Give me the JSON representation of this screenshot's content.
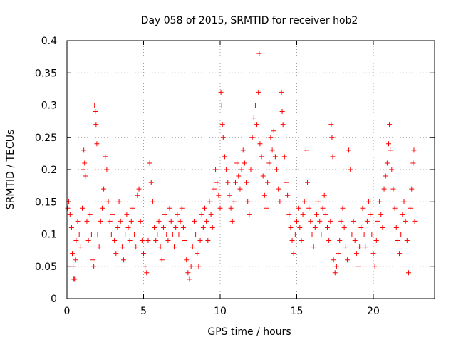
{
  "chart_data": {
    "type": "scatter",
    "title": "Day 058 of 2015, SRMTID for receiver hob2",
    "xlabel": "GPS time / hours",
    "ylabel": "SRMTID / TECUs",
    "xlim": [
      0,
      24
    ],
    "ylim": [
      0,
      0.4
    ],
    "xticks": [
      0,
      5,
      10,
      15,
      20
    ],
    "xtick_labels": [
      "0",
      "5",
      "10",
      "15",
      "20"
    ],
    "yticks": [
      0,
      0.05,
      0.1,
      0.15,
      0.2,
      0.25,
      0.3,
      0.35,
      0.4
    ],
    "ytick_labels": [
      "0",
      "0.05",
      "0.1",
      "0.15",
      "0.2",
      "0.25",
      "0.3",
      "0.35",
      "0.4"
    ],
    "grid": true,
    "marker": "+",
    "color": "#ff0000",
    "series": [
      {
        "name": "SRMTID",
        "points": [
          [
            0.05,
            0.14
          ],
          [
            0.12,
            0.15
          ],
          [
            0.2,
            0.13
          ],
          [
            0.3,
            0.11
          ],
          [
            0.35,
            0.07
          ],
          [
            0.4,
            0.05
          ],
          [
            0.45,
            0.03
          ],
          [
            0.5,
            0.03
          ],
          [
            0.55,
            0.06
          ],
          [
            0.6,
            0.09
          ],
          [
            0.7,
            0.12
          ],
          [
            0.8,
            0.1
          ],
          [
            0.9,
            0.08
          ],
          [
            1.0,
            0.14
          ],
          [
            1.05,
            0.2
          ],
          [
            1.1,
            0.23
          ],
          [
            1.15,
            0.21
          ],
          [
            1.2,
            0.19
          ],
          [
            1.3,
            0.12
          ],
          [
            1.4,
            0.09
          ],
          [
            1.5,
            0.13
          ],
          [
            1.6,
            0.1
          ],
          [
            1.7,
            0.06
          ],
          [
            1.75,
            0.05
          ],
          [
            1.8,
            0.3
          ],
          [
            1.85,
            0.29
          ],
          [
            1.9,
            0.27
          ],
          [
            1.95,
            0.24
          ],
          [
            2.0,
            0.1
          ],
          [
            2.1,
            0.08
          ],
          [
            2.2,
            0.12
          ],
          [
            2.3,
            0.14
          ],
          [
            2.4,
            0.17
          ],
          [
            2.5,
            0.22
          ],
          [
            2.6,
            0.2
          ],
          [
            2.7,
            0.15
          ],
          [
            2.8,
            0.12
          ],
          [
            2.9,
            0.1
          ],
          [
            3.0,
            0.13
          ],
          [
            3.1,
            0.09
          ],
          [
            3.2,
            0.07
          ],
          [
            3.3,
            0.11
          ],
          [
            3.4,
            0.15
          ],
          [
            3.5,
            0.12
          ],
          [
            3.6,
            0.08
          ],
          [
            3.7,
            0.06
          ],
          [
            3.8,
            0.1
          ],
          [
            3.9,
            0.13
          ],
          [
            4.0,
            0.11
          ],
          [
            4.1,
            0.09
          ],
          [
            4.2,
            0.12
          ],
          [
            4.3,
            0.14
          ],
          [
            4.4,
            0.1
          ],
          [
            4.5,
            0.08
          ],
          [
            4.6,
            0.16
          ],
          [
            4.7,
            0.17
          ],
          [
            4.8,
            0.12
          ],
          [
            4.9,
            0.09
          ],
          [
            5.0,
            0.07
          ],
          [
            5.1,
            0.05
          ],
          [
            5.2,
            0.04
          ],
          [
            5.3,
            0.09
          ],
          [
            5.4,
            0.21
          ],
          [
            5.5,
            0.18
          ],
          [
            5.6,
            0.15
          ],
          [
            5.7,
            0.11
          ],
          [
            5.8,
            0.09
          ],
          [
            5.9,
            0.1
          ],
          [
            6.0,
            0.12
          ],
          [
            6.1,
            0.08
          ],
          [
            6.2,
            0.06
          ],
          [
            6.3,
            0.11
          ],
          [
            6.4,
            0.13
          ],
          [
            6.5,
            0.1
          ],
          [
            6.6,
            0.09
          ],
          [
            6.7,
            0.14
          ],
          [
            6.8,
            0.12
          ],
          [
            6.9,
            0.1
          ],
          [
            7.0,
            0.08
          ],
          [
            7.1,
            0.11
          ],
          [
            7.2,
            0.13
          ],
          [
            7.3,
            0.1
          ],
          [
            7.4,
            0.12
          ],
          [
            7.5,
            0.14
          ],
          [
            7.6,
            0.11
          ],
          [
            7.7,
            0.09
          ],
          [
            7.8,
            0.06
          ],
          [
            7.9,
            0.04
          ],
          [
            8.0,
            0.03
          ],
          [
            8.1,
            0.05
          ],
          [
            8.2,
            0.08
          ],
          [
            8.3,
            0.12
          ],
          [
            8.4,
            0.1
          ],
          [
            8.5,
            0.07
          ],
          [
            8.6,
            0.05
          ],
          [
            8.7,
            0.09
          ],
          [
            8.8,
            0.13
          ],
          [
            8.9,
            0.11
          ],
          [
            9.0,
            0.14
          ],
          [
            9.1,
            0.12
          ],
          [
            9.2,
            0.09
          ],
          [
            9.3,
            0.15
          ],
          [
            9.4,
            0.13
          ],
          [
            9.5,
            0.11
          ],
          [
            9.6,
            0.17
          ],
          [
            9.7,
            0.2
          ],
          [
            9.8,
            0.18
          ],
          [
            9.9,
            0.16
          ],
          [
            10.0,
            0.14
          ],
          [
            10.05,
            0.32
          ],
          [
            10.1,
            0.3
          ],
          [
            10.15,
            0.27
          ],
          [
            10.2,
            0.25
          ],
          [
            10.3,
            0.22
          ],
          [
            10.4,
            0.2
          ],
          [
            10.5,
            0.18
          ],
          [
            10.6,
            0.16
          ],
          [
            10.7,
            0.14
          ],
          [
            10.8,
            0.12
          ],
          [
            10.9,
            0.15
          ],
          [
            11.0,
            0.18
          ],
          [
            11.1,
            0.21
          ],
          [
            11.2,
            0.19
          ],
          [
            11.3,
            0.17
          ],
          [
            11.4,
            0.2
          ],
          [
            11.5,
            0.23
          ],
          [
            11.6,
            0.21
          ],
          [
            11.7,
            0.18
          ],
          [
            11.8,
            0.15
          ],
          [
            11.9,
            0.13
          ],
          [
            12.0,
            0.2
          ],
          [
            12.1,
            0.25
          ],
          [
            12.2,
            0.28
          ],
          [
            12.3,
            0.3
          ],
          [
            12.4,
            0.27
          ],
          [
            12.5,
            0.32
          ],
          [
            12.55,
            0.38
          ],
          [
            12.6,
            0.24
          ],
          [
            12.7,
            0.22
          ],
          [
            12.8,
            0.19
          ],
          [
            12.9,
            0.16
          ],
          [
            13.0,
            0.14
          ],
          [
            13.1,
            0.18
          ],
          [
            13.2,
            0.21
          ],
          [
            13.3,
            0.25
          ],
          [
            13.4,
            0.23
          ],
          [
            13.5,
            0.26
          ],
          [
            13.6,
            0.22
          ],
          [
            13.7,
            0.2
          ],
          [
            13.8,
            0.17
          ],
          [
            13.9,
            0.15
          ],
          [
            14.0,
            0.32
          ],
          [
            14.05,
            0.29
          ],
          [
            14.1,
            0.27
          ],
          [
            14.2,
            0.22
          ],
          [
            14.3,
            0.18
          ],
          [
            14.4,
            0.16
          ],
          [
            14.5,
            0.13
          ],
          [
            14.6,
            0.11
          ],
          [
            14.7,
            0.09
          ],
          [
            14.8,
            0.07
          ],
          [
            14.9,
            0.1
          ],
          [
            15.0,
            0.12
          ],
          [
            15.1,
            0.14
          ],
          [
            15.2,
            0.11
          ],
          [
            15.3,
            0.09
          ],
          [
            15.4,
            0.13
          ],
          [
            15.5,
            0.15
          ],
          [
            15.6,
            0.23
          ],
          [
            15.7,
            0.18
          ],
          [
            15.8,
            0.14
          ],
          [
            15.9,
            0.12
          ],
          [
            16.0,
            0.1
          ],
          [
            16.1,
            0.08
          ],
          [
            16.2,
            0.11
          ],
          [
            16.3,
            0.13
          ],
          [
            16.4,
            0.15
          ],
          [
            16.5,
            0.12
          ],
          [
            16.6,
            0.1
          ],
          [
            16.7,
            0.14
          ],
          [
            16.8,
            0.16
          ],
          [
            16.9,
            0.13
          ],
          [
            17.0,
            0.11
          ],
          [
            17.1,
            0.09
          ],
          [
            17.2,
            0.12
          ],
          [
            17.25,
            0.27
          ],
          [
            17.3,
            0.25
          ],
          [
            17.35,
            0.22
          ],
          [
            17.4,
            0.06
          ],
          [
            17.5,
            0.04
          ],
          [
            17.6,
            0.05
          ],
          [
            17.7,
            0.07
          ],
          [
            17.8,
            0.09
          ],
          [
            17.9,
            0.12
          ],
          [
            18.0,
            0.14
          ],
          [
            18.1,
            0.11
          ],
          [
            18.2,
            0.08
          ],
          [
            18.3,
            0.06
          ],
          [
            18.4,
            0.23
          ],
          [
            18.5,
            0.2
          ],
          [
            18.6,
            0.1
          ],
          [
            18.7,
            0.12
          ],
          [
            18.8,
            0.09
          ],
          [
            18.9,
            0.07
          ],
          [
            19.0,
            0.05
          ],
          [
            19.1,
            0.08
          ],
          [
            19.2,
            0.11
          ],
          [
            19.3,
            0.14
          ],
          [
            19.4,
            0.1
          ],
          [
            19.5,
            0.08
          ],
          [
            19.6,
            0.12
          ],
          [
            19.7,
            0.15
          ],
          [
            19.8,
            0.13
          ],
          [
            19.9,
            0.1
          ],
          [
            20.0,
            0.07
          ],
          [
            20.1,
            0.05
          ],
          [
            20.2,
            0.09
          ],
          [
            20.3,
            0.12
          ],
          [
            20.4,
            0.15
          ],
          [
            20.5,
            0.13
          ],
          [
            20.6,
            0.11
          ],
          [
            20.7,
            0.17
          ],
          [
            20.8,
            0.19
          ],
          [
            20.9,
            0.21
          ],
          [
            21.0,
            0.24
          ],
          [
            21.05,
            0.27
          ],
          [
            21.1,
            0.23
          ],
          [
            21.2,
            0.2
          ],
          [
            21.3,
            0.17
          ],
          [
            21.4,
            0.14
          ],
          [
            21.5,
            0.11
          ],
          [
            21.6,
            0.09
          ],
          [
            21.7,
            0.07
          ],
          [
            21.8,
            0.1
          ],
          [
            21.9,
            0.13
          ],
          [
            22.0,
            0.15
          ],
          [
            22.1,
            0.12
          ],
          [
            22.2,
            0.09
          ],
          [
            22.3,
            0.04
          ],
          [
            22.4,
            0.14
          ],
          [
            22.5,
            0.17
          ],
          [
            22.6,
            0.21
          ],
          [
            22.65,
            0.23
          ],
          [
            22.7,
            0.12
          ]
        ]
      }
    ]
  }
}
